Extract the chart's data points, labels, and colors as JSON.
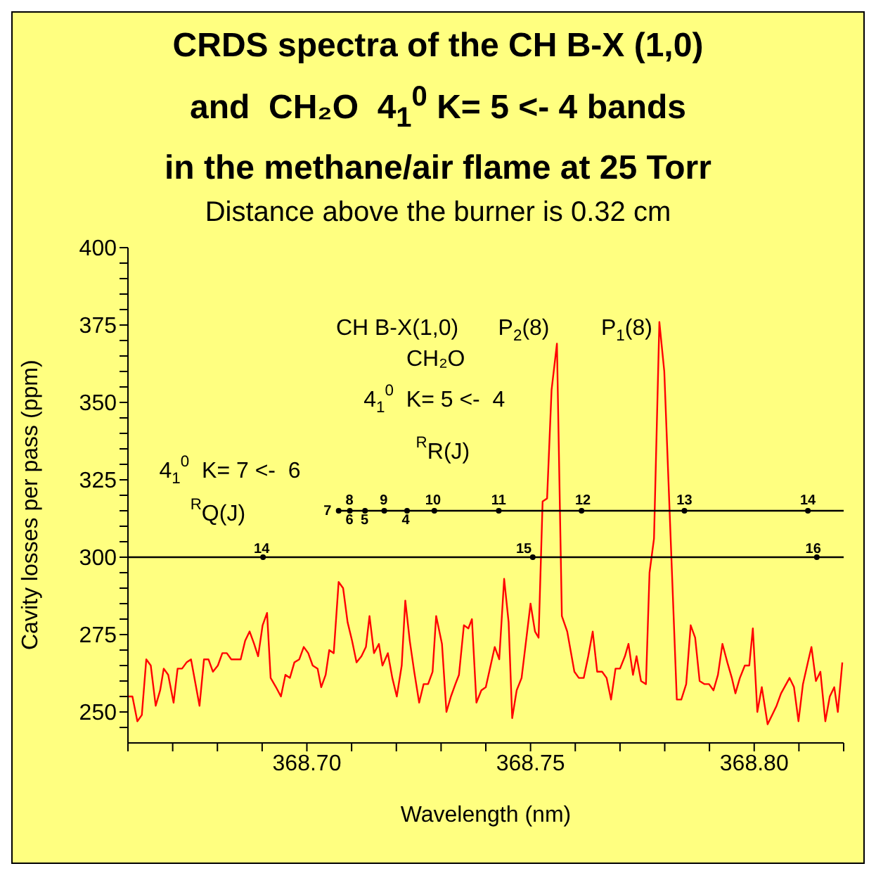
{
  "chart_data": {
    "type": "line",
    "title": "CRDS spectra of the CH B-X (1,0)\nand  CH₂O  4$_{1}$$^{0}$ K= 5 <- 4 bands\nin the methane/air flame at 25 Torr",
    "subtitle": "Distance above the burner is 0.32 cm",
    "xlabel": "Wavelength (nm)",
    "ylabel": "Cavity losses per pass (ppm)",
    "xlim": [
      368.66,
      368.82
    ],
    "ylim": [
      240,
      400
    ],
    "xticks": [
      {
        "value": 368.66,
        "label": null
      },
      {
        "value": 368.67,
        "label": null
      },
      {
        "value": 368.68,
        "label": null
      },
      {
        "value": 368.69,
        "label": null
      },
      {
        "value": 368.7,
        "label": "368.70"
      },
      {
        "value": 368.71,
        "label": null
      },
      {
        "value": 368.72,
        "label": null
      },
      {
        "value": 368.73,
        "label": null
      },
      {
        "value": 368.74,
        "label": null
      },
      {
        "value": 368.75,
        "label": "368.75"
      },
      {
        "value": 368.76,
        "label": null
      },
      {
        "value": 368.77,
        "label": null
      },
      {
        "value": 368.78,
        "label": null
      },
      {
        "value": 368.79,
        "label": null
      },
      {
        "value": 368.8,
        "label": "368.80"
      },
      {
        "value": 368.81,
        "label": null
      },
      {
        "value": 368.82,
        "label": null
      }
    ],
    "yticks": [
      {
        "value": 245,
        "label": null
      },
      250,
      {
        "value": 255,
        "label": null
      },
      {
        "value": 260,
        "label": null
      },
      {
        "value": 265,
        "label": null
      },
      {
        "value": 270,
        "label": null
      },
      275,
      {
        "value": 280,
        "label": null
      },
      {
        "value": 285,
        "label": null
      },
      {
        "value": 290,
        "label": null
      },
      {
        "value": 295,
        "label": null
      },
      300,
      {
        "value": 305,
        "label": null
      },
      {
        "value": 310,
        "label": null
      },
      {
        "value": 315,
        "label": null
      },
      {
        "value": 320,
        "label": null
      },
      325,
      {
        "value": 330,
        "label": null
      },
      {
        "value": 335,
        "label": null
      },
      {
        "value": 340,
        "label": null
      },
      {
        "value": 345,
        "label": null
      },
      350,
      {
        "value": 355,
        "label": null
      },
      {
        "value": 360,
        "label": null
      },
      {
        "value": 365,
        "label": null
      },
      {
        "value": 370,
        "label": null
      },
      375,
      {
        "value": 380,
        "label": null
      },
      {
        "value": 385,
        "label": null
      },
      {
        "value": 390,
        "label": null
      },
      {
        "value": 395,
        "label": null
      },
      400
    ],
    "series": [
      {
        "color": "#ff0000",
        "x": [
          368.66,
          368.661,
          368.6621,
          368.6631,
          368.6641,
          368.6651,
          368.6662,
          368.6672,
          368.668,
          368.669,
          368.6702,
          368.6711,
          368.6721,
          368.6731,
          368.6741,
          368.676,
          368.677,
          368.678,
          368.679,
          368.6801,
          368.6811,
          368.6821,
          368.6831,
          368.6842,
          368.6852,
          368.6862,
          368.6872,
          368.6882,
          368.6891,
          368.6901,
          368.6911,
          368.6919,
          368.6931,
          368.6942,
          368.6952,
          368.6962,
          368.6972,
          368.6983,
          368.6993,
          368.7003,
          368.7013,
          368.7024,
          368.7032,
          368.7042,
          368.705,
          368.706,
          368.7071,
          368.7081,
          368.7091,
          368.7101,
          368.7111,
          368.7122,
          368.7132,
          368.714,
          368.715,
          368.7161,
          368.7169,
          368.7181,
          368.7191,
          368.7201,
          368.7212,
          368.722,
          368.723,
          368.724,
          368.7251,
          368.7261,
          368.7271,
          368.7281,
          368.7289,
          368.7302,
          368.7312,
          368.7322,
          368.7332,
          368.734,
          368.7351,
          368.7361,
          368.7369,
          368.7379,
          368.739,
          368.74,
          368.742,
          368.743,
          368.7441,
          368.7451,
          368.7459,
          368.7469,
          368.748,
          368.749,
          368.75,
          368.751,
          368.7518,
          368.7527,
          368.7537,
          368.7547,
          368.7559,
          368.757,
          368.7582,
          368.7598,
          368.7608,
          368.7619,
          368.7629,
          368.7639,
          368.7649,
          368.766,
          368.767,
          368.768,
          368.769,
          368.77,
          368.7711,
          368.7719,
          368.7729,
          368.7737,
          368.7747,
          368.7758,
          368.7766,
          368.7776,
          368.7788,
          368.7799,
          368.7827,
          368.7837,
          368.7848,
          368.7858,
          368.7868,
          368.7878,
          368.7889,
          368.7899,
          368.7909,
          368.7919,
          368.7929,
          368.794,
          368.795,
          368.7958,
          368.7968,
          368.7979,
          368.7989,
          368.7997,
          368.8007,
          368.8017,
          368.803,
          368.804,
          368.805,
          368.806,
          368.8079,
          368.8089,
          368.8099,
          368.8109,
          368.812,
          368.8128,
          368.8138,
          368.8148,
          368.8159,
          368.8169,
          368.8179,
          368.8187,
          368.8197
        ],
        "values": [
          255,
          255,
          247,
          249,
          267,
          265,
          252,
          257,
          264,
          262,
          253,
          264,
          264,
          266,
          267,
          252,
          267,
          267,
          263,
          265,
          269,
          269,
          267,
          267,
          267,
          273,
          276,
          272,
          268,
          278,
          282,
          261,
          258,
          255,
          262,
          261,
          266,
          267,
          271,
          269,
          265,
          264,
          258,
          262,
          270,
          269,
          292,
          290,
          279,
          273,
          266,
          268,
          271,
          281,
          269,
          272,
          265,
          269,
          261,
          255,
          265,
          286,
          273,
          263,
          253,
          259,
          259,
          263,
          281,
          272,
          250,
          255,
          259,
          262,
          278,
          277,
          280,
          253,
          257,
          258,
          271,
          267,
          293,
          279,
          248,
          257,
          261,
          273,
          285,
          276,
          274,
          318,
          319,
          354,
          369,
          281,
          276,
          263,
          261,
          261,
          268,
          276,
          263,
          263,
          261,
          254,
          264,
          264,
          268,
          272,
          262,
          268,
          260,
          259,
          295,
          306,
          376,
          360,
          254,
          254,
          259,
          278,
          274,
          260,
          259,
          259,
          257,
          262,
          272,
          266,
          261,
          256,
          261,
          265,
          265,
          277,
          250,
          258,
          246,
          249,
          252,
          256,
          261,
          258,
          247,
          259,
          266,
          271,
          260,
          263,
          247,
          255,
          258,
          250,
          266
        ]
      },
      {
        "type": "line",
        "color": "#000000",
        "x": [
          368.7071,
          368.82
        ],
        "values": [
          315,
          315
        ]
      },
      {
        "type": "line",
        "color": "#000000",
        "x": [
          368.66,
          368.82
        ],
        "values": [
          300,
          300
        ]
      },
      {
        "type": "scatter",
        "color": "#000000",
        "x": [
          368.7071,
          368.7096,
          368.713,
          368.7173,
          368.7224,
          368.7285,
          368.7429,
          368.7614,
          368.7844,
          368.812,
          368.6902,
          368.7505,
          368.814
        ],
        "values": [
          315,
          315,
          315,
          315,
          315,
          315,
          315,
          315,
          315,
          315,
          300,
          300,
          300
        ]
      }
    ],
    "annotations": [
      "CH B-X(1,0)",
      "P$_{2}$(8)",
      "P$_{1}$(8)",
      "CH₂O",
      "4$_{1}$$^{0}$  K= 5 <-  4",
      "$^{R}$R(J)",
      "4$_{1}$$^{0}$  K= 7 <-  6",
      "$^{R}$Q(J)",
      "7",
      "8",
      "6",
      "5",
      "9",
      "4",
      "10",
      "11",
      "12",
      "13",
      "14",
      "14",
      "15",
      "16"
    ]
  }
}
